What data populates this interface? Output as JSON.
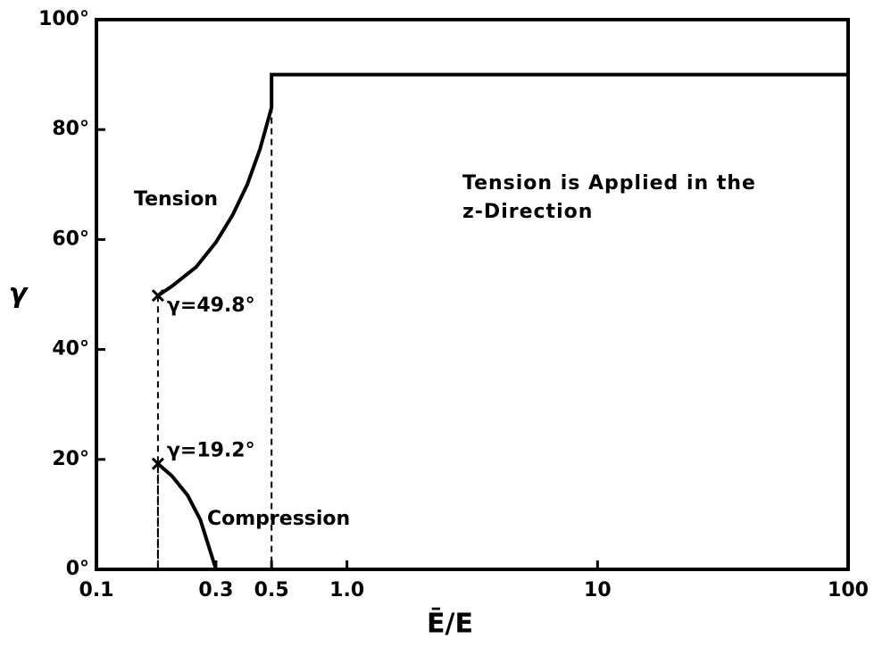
{
  "chart_data": {
    "type": "line",
    "xlabel": "Ē/E",
    "ylabel": "γ",
    "xscale": "log",
    "xlim": [
      0.1,
      100
    ],
    "ylim": [
      0,
      100
    ],
    "xticks": [
      0.1,
      0.3,
      0.5,
      {
        "value": 1,
        "label": "1.0"
      },
      10,
      100
    ],
    "yticks": [
      {
        "value": 0,
        "label": "0°"
      },
      {
        "value": 20,
        "label": "20°"
      },
      {
        "value": 40,
        "label": "40°"
      },
      {
        "value": 60,
        "label": "60°"
      },
      {
        "value": 80,
        "label": "80°"
      },
      {
        "value": 100,
        "label": "100°"
      }
    ],
    "grid": false,
    "series": [
      {
        "name": "Tension",
        "color": "#000000",
        "x": [
          0.176,
          0.2,
          0.25,
          0.3,
          0.35,
          0.4,
          0.45,
          0.5,
          0.5,
          1,
          10,
          100
        ],
        "values": [
          49.8,
          51.5,
          55,
          59.5,
          64.5,
          70,
          76.5,
          84,
          90,
          90,
          90,
          90
        ]
      },
      {
        "name": "Compression",
        "color": "#000000",
        "x": [
          0.176,
          0.2,
          0.231,
          0.26,
          0.3
        ],
        "values": [
          19.2,
          17,
          13.5,
          9,
          0
        ]
      }
    ],
    "markers": [
      {
        "x": 0.176,
        "y": 49.8,
        "label": "γ=49.8°"
      },
      {
        "x": 0.176,
        "y": 19.2,
        "label": "γ=19.2°"
      }
    ],
    "dashed_lines": [
      {
        "x": 0.5,
        "y": 90
      }
    ],
    "annotation": [
      "Tension is Applied in the",
      "z-Direction"
    ]
  }
}
